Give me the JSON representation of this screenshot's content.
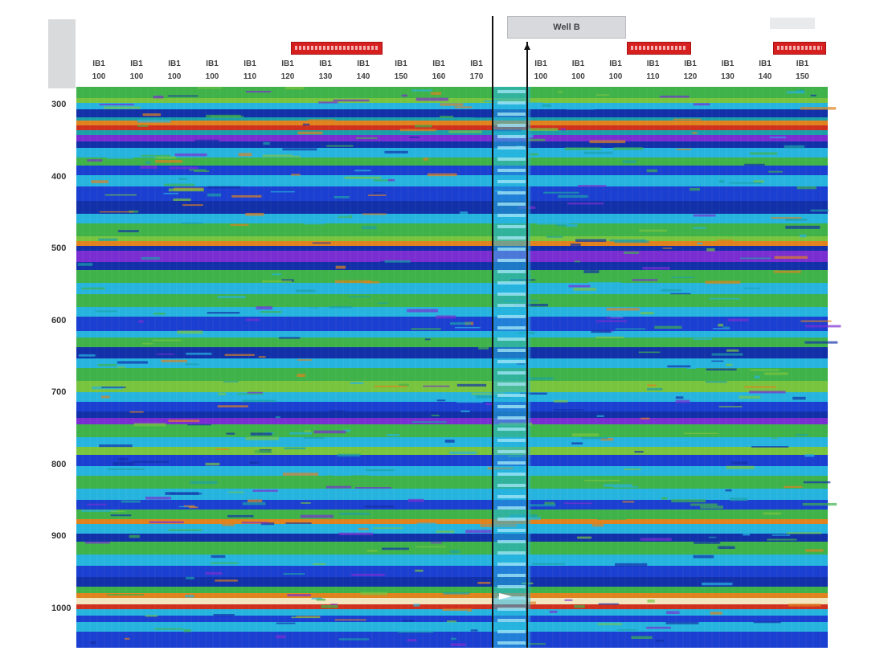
{
  "header": {
    "well_label": "Well B"
  },
  "time_axis": {
    "ticks": [
      "300",
      "400",
      "500",
      "600",
      "700",
      "800",
      "900",
      "1000"
    ]
  },
  "trace_headers": {
    "left": [
      {
        "top": "IB1",
        "bottom": "100"
      },
      {
        "top": "IB1",
        "bottom": "100"
      },
      {
        "top": "IB1",
        "bottom": "100"
      },
      {
        "top": "IB1",
        "bottom": "100"
      },
      {
        "top": "IB1",
        "bottom": "110"
      },
      {
        "top": "IB1",
        "bottom": "120"
      },
      {
        "top": "IB1",
        "bottom": "130"
      },
      {
        "top": "IB1",
        "bottom": "140"
      },
      {
        "top": "IB1",
        "bottom": "150"
      },
      {
        "top": "IB1",
        "bottom": "160"
      },
      {
        "top": "IB1",
        "bottom": "170"
      }
    ],
    "right": [
      {
        "top": "IB1",
        "bottom": "100"
      },
      {
        "top": "IB1",
        "bottom": "100"
      },
      {
        "top": "IB1",
        "bottom": "100"
      },
      {
        "top": "IB1",
        "bottom": "110"
      },
      {
        "top": "IB1",
        "bottom": "120"
      },
      {
        "top": "IB1",
        "bottom": "130"
      },
      {
        "top": "IB1",
        "bottom": "140"
      },
      {
        "top": "IB1",
        "bottom": "150"
      }
    ]
  },
  "colors": {
    "blue": "#1b3fd0",
    "navy": "#1230a8",
    "cyan": "#26b4df",
    "teal": "#1ba0a8",
    "green": "#3fb24a",
    "lime": "#79c43f",
    "purple": "#7a2ed1",
    "orange": "#e0821d",
    "red": "#d0301e",
    "cream": "#f1e6bf",
    "flag_red": "#d62020"
  }
}
